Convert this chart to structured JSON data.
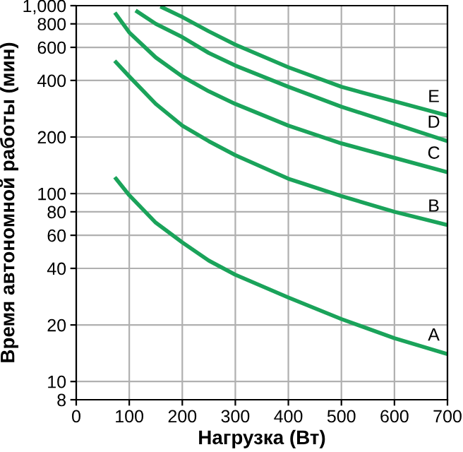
{
  "chart_data": {
    "type": "line",
    "xlabel": "Нагрузка (Вт)",
    "ylabel": "Время автономной работы (мин)",
    "log": "y",
    "grid": true,
    "marker": "none",
    "line_style": "solid",
    "xlim": [
      0,
      700
    ],
    "xticks": [
      0,
      100,
      200,
      300,
      400,
      500,
      600,
      700
    ],
    "ylim": [
      8,
      1000
    ],
    "yticks": [
      8,
      10,
      20,
      40,
      60,
      80,
      100,
      200,
      400,
      600,
      800,
      {
        "value": 1000,
        "label": "1,000"
      }
    ],
    "series": [
      {
        "name": "A",
        "color": "#1aa35a",
        "x": [
          75,
          100,
          150,
          200,
          250,
          300,
          400,
          500,
          600,
          700
        ],
        "values": [
          120,
          98,
          70,
          55,
          44,
          37,
          28,
          21.5,
          17,
          14
        ]
      },
      {
        "name": "B",
        "color": "#1aa35a",
        "x": [
          75,
          100,
          150,
          200,
          250,
          300,
          400,
          500,
          600,
          700
        ],
        "values": [
          500,
          420,
          300,
          230,
          190,
          160,
          120,
          97,
          80,
          68
        ]
      },
      {
        "name": "C",
        "color": "#1aa35a",
        "x": [
          75,
          100,
          150,
          200,
          250,
          300,
          400,
          500,
          600,
          700
        ],
        "values": [
          900,
          720,
          530,
          420,
          350,
          300,
          230,
          185,
          155,
          130
        ]
      },
      {
        "name": "D",
        "color": "#1aa35a",
        "x": [
          115,
          150,
          200,
          250,
          300,
          400,
          500,
          600,
          700
        ],
        "values": [
          930,
          800,
          680,
          560,
          480,
          370,
          290,
          235,
          190
        ]
      },
      {
        "name": "E",
        "color": "#1aa35a",
        "x": [
          162,
          200,
          250,
          300,
          400,
          500,
          600,
          700
        ],
        "values": [
          980,
          870,
          730,
          620,
          470,
          370,
          310,
          260
        ]
      }
    ]
  }
}
